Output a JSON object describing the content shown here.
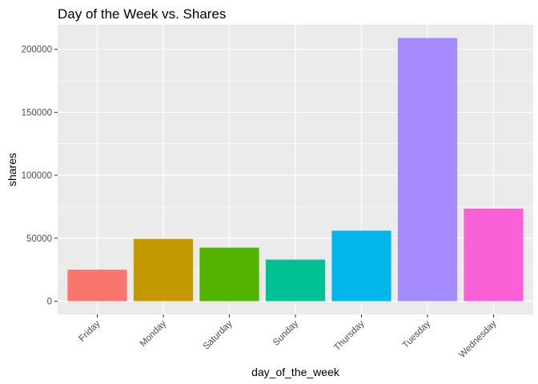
{
  "chart_data": {
    "type": "bar",
    "title": "Day of the Week vs. Shares",
    "xlabel": "day_of_the_week",
    "ylabel": "shares",
    "categories": [
      "Friday",
      "Monday",
      "Saturday",
      "Sunday",
      "Thursday",
      "Tuesday",
      "Wednesday"
    ],
    "values": [
      25000,
      49500,
      42500,
      33000,
      56000,
      209000,
      73500
    ],
    "colors": [
      "#F8766D",
      "#C49A00",
      "#53B400",
      "#00C094",
      "#00B6EB",
      "#A58AFF",
      "#FB61D7"
    ],
    "ylim": [
      -10500,
      219500
    ],
    "yticks": [
      0,
      50000,
      100000,
      150000,
      200000
    ],
    "ytick_labels": [
      "0",
      "50000",
      "100000",
      "150000",
      "200000"
    ],
    "grid": true,
    "panel_background": "#EBEBEB",
    "grid_color": "#FFFFFF"
  }
}
